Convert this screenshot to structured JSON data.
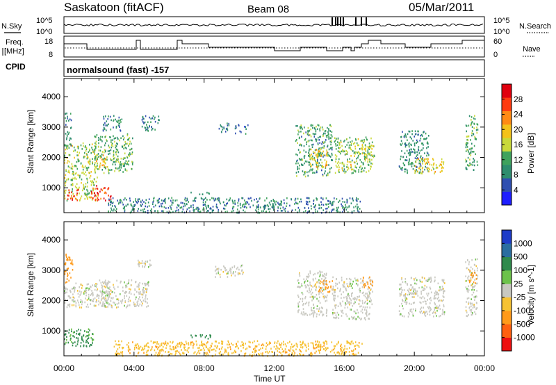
{
  "header": {
    "station": "Saskatoon (fitACF)",
    "beam": "Beam 08",
    "date": "05/Mar/2011"
  },
  "top_panels": {
    "nsky_label": "N.Sky",
    "nsearch_label": "N.Search",
    "noise_ticks_left": [
      "10^5",
      "10^0"
    ],
    "noise_ticks_right": [
      "10^5",
      "10^0"
    ],
    "freq_label_1": "Freq.",
    "freq_label_2": "[MHz]",
    "freq_ticks": [
      "18",
      "8"
    ],
    "nave_label": "Nave",
    "nave_ticks": [
      "60",
      "0"
    ],
    "cpid_label": "CPID",
    "cpid_text": "normalsound (fast) -157"
  },
  "axes": {
    "xlabel": "Time UT",
    "ylabel": "Slant Range [km]",
    "x_ticks": [
      "00:00",
      "04:00",
      "08:00",
      "12:00",
      "16:00",
      "20:00",
      "00:00"
    ],
    "y_ticks": [
      "1000",
      "2000",
      "3000",
      "4000"
    ]
  },
  "colorbars": {
    "power": {
      "label": "Power [dB]",
      "ticks": [
        "4",
        "8",
        "12",
        "16",
        "20",
        "24",
        "28"
      ],
      "colors": [
        "#1e1eff",
        "#2f4fb0",
        "#2e8d6e",
        "#3fa25d",
        "#c9d93a",
        "#f4c21a",
        "#ff8a14",
        "#ff3b10",
        "#e0000e"
      ]
    },
    "velocity": {
      "label": "Velocity [m s^-1]",
      "ticks": [
        "1000",
        "500",
        "100",
        "25",
        "-25",
        "-100",
        "-500",
        "-1000"
      ],
      "colors": [
        "#1e3cc8",
        "#2a6ea0",
        "#2f8a4c",
        "#6cc24a",
        "#c8c8c0",
        "#f6c233",
        "#ff9a1a",
        "#ff6010",
        "#ee1010"
      ]
    }
  },
  "chart_data": [
    {
      "type": "heatmap",
      "title": "Power",
      "xlabel": "Time UT",
      "ylabel": "Slant Range [km]",
      "xlim": [
        0,
        24
      ],
      "ylim": [
        180,
        4600
      ],
      "colorbar_range": [
        0,
        30
      ],
      "regions": [
        {
          "t": [
            0.0,
            1.9
          ],
          "r": [
            600,
            2500
          ],
          "value": 14
        },
        {
          "t": [
            0.1,
            0.8
          ],
          "r": [
            600,
            1000
          ],
          "value": 26
        },
        {
          "t": [
            0.0,
            0.4
          ],
          "r": [
            2400,
            3500
          ],
          "value": 9
        },
        {
          "t": [
            1.5,
            2.7
          ],
          "r": [
            600,
            1100
          ],
          "value": 25
        },
        {
          "t": [
            1.7,
            3.9
          ],
          "r": [
            1500,
            2800
          ],
          "value": 12
        },
        {
          "t": [
            1.8,
            2.4
          ],
          "r": [
            1700,
            2100
          ],
          "value": 19
        },
        {
          "t": [
            2.2,
            3.3
          ],
          "r": [
            2900,
            3400
          ],
          "value": 8
        },
        {
          "t": [
            4.4,
            5.5
          ],
          "r": [
            2900,
            3400
          ],
          "value": 8
        },
        {
          "t": [
            7.2,
            8.3
          ],
          "r": [
            800,
            900
          ],
          "value": 9
        },
        {
          "t": [
            8.8,
            9.4
          ],
          "r": [
            2850,
            3150
          ],
          "value": 8
        },
        {
          "t": [
            9.7,
            10.5
          ],
          "r": [
            2800,
            3100
          ],
          "value": 7
        },
        {
          "t": [
            13.2,
            15.3
          ],
          "r": [
            1400,
            3100
          ],
          "value": 10
        },
        {
          "t": [
            14.0,
            15.0
          ],
          "r": [
            1700,
            2300
          ],
          "value": 18
        },
        {
          "t": [
            15.4,
            17.6
          ],
          "r": [
            1500,
            2700
          ],
          "value": 13
        },
        {
          "t": [
            15.8,
            16.6
          ],
          "r": [
            1600,
            1900
          ],
          "value": 17
        },
        {
          "t": [
            16.9,
            17.7
          ],
          "r": [
            1900,
            2500
          ],
          "value": 16
        },
        {
          "t": [
            19.1,
            20.8
          ],
          "r": [
            1500,
            2900
          ],
          "value": 9
        },
        {
          "t": [
            20.0,
            21.7
          ],
          "r": [
            1500,
            2000
          ],
          "value": 17
        },
        {
          "t": [
            22.9,
            23.6
          ],
          "r": [
            1600,
            3400
          ],
          "value": 11
        },
        {
          "t": [
            2.5,
            16.9
          ],
          "r": [
            200,
            700
          ],
          "value": 8
        }
      ]
    },
    {
      "type": "heatmap",
      "title": "Velocity",
      "xlabel": "Time UT",
      "ylabel": "Slant Range [km]",
      "xlim": [
        0,
        24
      ],
      "ylim": [
        180,
        4600
      ],
      "colorbar_range": [
        -1000,
        1000
      ],
      "regions": [
        {
          "t": [
            0.0,
            1.7
          ],
          "r": [
            500,
            1100
          ],
          "value": 120
        },
        {
          "t": [
            0.0,
            2.5
          ],
          "r": [
            1800,
            2600
          ],
          "value": 0
        },
        {
          "t": [
            2.0,
            4.8
          ],
          "r": [
            1800,
            2700
          ],
          "value": 0
        },
        {
          "t": [
            0.0,
            0.5
          ],
          "r": [
            2600,
            3600
          ],
          "value": -200
        },
        {
          "t": [
            4.2,
            5.0
          ],
          "r": [
            3100,
            3400
          ],
          "value": 0
        },
        {
          "t": [
            7.2,
            8.5
          ],
          "r": [
            750,
            900
          ],
          "value": 150
        },
        {
          "t": [
            8.6,
            10.3
          ],
          "r": [
            2800,
            3200
          ],
          "value": 0
        },
        {
          "t": [
            13.3,
            15.0
          ],
          "r": [
            1500,
            3000
          ],
          "value": 0
        },
        {
          "t": [
            14.5,
            15.3
          ],
          "r": [
            2300,
            2700
          ],
          "value": -150
        },
        {
          "t": [
            15.3,
            17.6
          ],
          "r": [
            1400,
            2800
          ],
          "value": 0
        },
        {
          "t": [
            17.0,
            17.6
          ],
          "r": [
            2400,
            2800
          ],
          "value": -400
        },
        {
          "t": [
            19.1,
            21.7
          ],
          "r": [
            1500,
            2800
          ],
          "value": 0
        },
        {
          "t": [
            22.9,
            23.6
          ],
          "r": [
            1500,
            3400
          ],
          "value": 0
        },
        {
          "t": [
            23.1,
            23.6
          ],
          "r": [
            2600,
            3000
          ],
          "value": -300
        },
        {
          "t": [
            2.8,
            17.0
          ],
          "r": [
            200,
            700
          ],
          "value": -80
        }
      ]
    }
  ]
}
